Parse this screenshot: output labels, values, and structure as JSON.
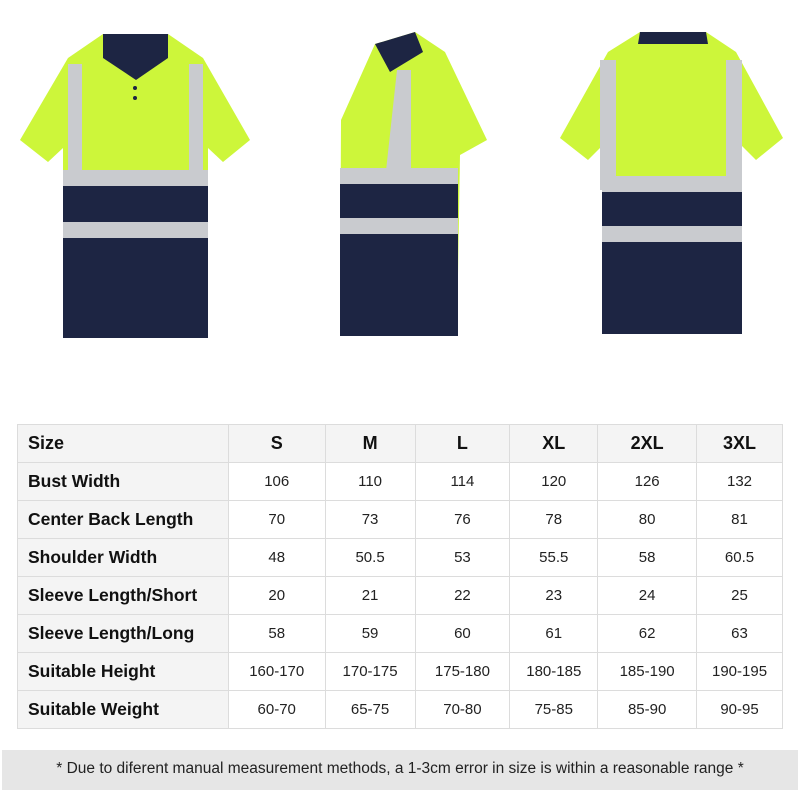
{
  "colors": {
    "hivis_yellow": "#cdf63a",
    "navy": "#1d2543",
    "reflective": "#c9cbcf"
  },
  "images": [
    {
      "view": "front",
      "icon": "polo-shirt-front"
    },
    {
      "view": "side",
      "icon": "polo-shirt-side"
    },
    {
      "view": "back",
      "icon": "polo-shirt-back"
    }
  ],
  "size_table": {
    "header": [
      "Size",
      "S",
      "M",
      "L",
      "XL",
      "2XL",
      "3XL"
    ],
    "rows": [
      {
        "label": "Bust  Width",
        "values": [
          "106",
          "110",
          "114",
          "120",
          "126",
          "132"
        ]
      },
      {
        "label": "Center Back Length",
        "values": [
          "70",
          "73",
          "76",
          "78",
          "80",
          "81"
        ]
      },
      {
        "label": "Shoulder Width",
        "values": [
          "48",
          "50.5",
          "53",
          "55.5",
          "58",
          "60.5"
        ]
      },
      {
        "label": "Sleeve Length/Short",
        "values": [
          "20",
          "21",
          "22",
          "23",
          "24",
          "25"
        ]
      },
      {
        "label": "Sleeve Length/Long",
        "values": [
          "58",
          "59",
          "60",
          "61",
          "62",
          "63"
        ]
      },
      {
        "label": "Suitable Height",
        "values": [
          "160-170",
          "170-175",
          "175-180",
          "180-185",
          "185-190",
          "190-195"
        ]
      },
      {
        "label": "Suitable Weight",
        "values": [
          "60-70",
          "65-75",
          "70-80",
          "75-85",
          "85-90",
          "90-95"
        ]
      }
    ]
  },
  "footnote": "* Due to diferent manual measurement methods, a 1-3cm error in size is within a reasonable range *"
}
